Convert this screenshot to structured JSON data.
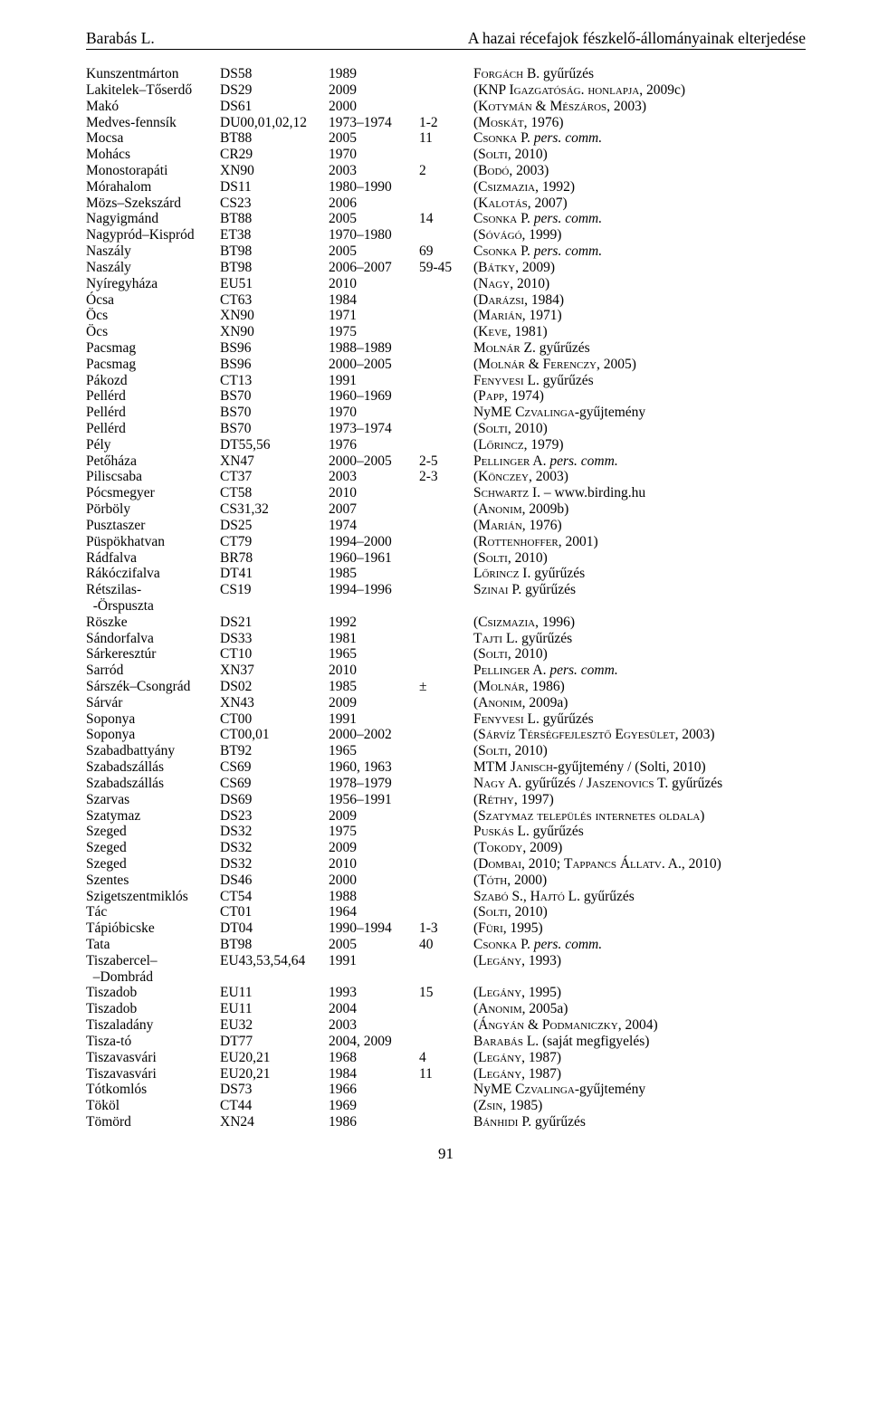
{
  "header": {
    "left": "Barabás L.",
    "right": "A hazai récefajok fészkelő-állományainak elterjedése"
  },
  "rows": [
    {
      "c1": "Kunszentmárton",
      "c2": "DS58",
      "c3": "1989",
      "c4": "",
      "c5": [
        {
          "t": "Forgách B.",
          "sc": true
        },
        {
          "t": " gyűrűzés"
        }
      ]
    },
    {
      "c1": "Lakitelek–Tőserdő",
      "c2": "DS29",
      "c3": "2009",
      "c4": "",
      "c5": [
        {
          "t": "(KNP "
        },
        {
          "t": "Igazgatóság. honlapja",
          "sc": true
        },
        {
          "t": ", 2009c)"
        }
      ]
    },
    {
      "c1": "Makó",
      "c2": "DS61",
      "c3": "2000",
      "c4": "",
      "c5": [
        {
          "t": "("
        },
        {
          "t": "Kotymán & Mészáros",
          "sc": true
        },
        {
          "t": ", 2003)"
        }
      ]
    },
    {
      "c1": "Medves-fennsík",
      "c2": "DU00,01,02,12",
      "c3": "1973–1974",
      "c4": "1-2",
      "c5": [
        {
          "t": "("
        },
        {
          "t": "Moskát",
          "sc": true
        },
        {
          "t": ", 1976)"
        }
      ]
    },
    {
      "c1": "Mocsa",
      "c2": "BT88",
      "c3": "2005",
      "c4": "11",
      "c5": [
        {
          "t": "Csonka P.",
          "sc": true
        },
        {
          "t": " pers. comm.",
          "it": true
        }
      ]
    },
    {
      "c1": "Mohács",
      "c2": "CR29",
      "c3": "1970",
      "c4": "",
      "c5": [
        {
          "t": "("
        },
        {
          "t": "Solti",
          "sc": true
        },
        {
          "t": ", 2010)"
        }
      ]
    },
    {
      "c1": "Monostorapáti",
      "c2": "XN90",
      "c3": "2003",
      "c4": "2",
      "c5": [
        {
          "t": "("
        },
        {
          "t": "Bodó",
          "sc": true
        },
        {
          "t": ", 2003)"
        }
      ]
    },
    {
      "c1": "Mórahalom",
      "c2": "DS11",
      "c3": "1980–1990",
      "c4": "",
      "c5": [
        {
          "t": "("
        },
        {
          "t": "Csizmazia",
          "sc": true
        },
        {
          "t": ", 1992)"
        }
      ]
    },
    {
      "c1": "Mözs–Szekszárd",
      "c2": "CS23",
      "c3": "2006",
      "c4": "",
      "c5": [
        {
          "t": "("
        },
        {
          "t": "Kalotás",
          "sc": true
        },
        {
          "t": ", 2007)"
        }
      ]
    },
    {
      "c1": "Nagyigmánd",
      "c2": "BT88",
      "c3": "2005",
      "c4": "14",
      "c5": [
        {
          "t": "Csonka P.",
          "sc": true
        },
        {
          "t": " pers. comm.",
          "it": true
        }
      ]
    },
    {
      "c1": "Nagypród–Kispród",
      "c2": "ET38",
      "c3": "1970–1980",
      "c4": "",
      "c5": [
        {
          "t": "("
        },
        {
          "t": "Sóvágó",
          "sc": true
        },
        {
          "t": ", 1999)"
        }
      ]
    },
    {
      "c1": "Naszály",
      "c2": "BT98",
      "c3": "2005",
      "c4": "69",
      "c5": [
        {
          "t": "Csonka P.",
          "sc": true
        },
        {
          "t": " pers. comm.",
          "it": true
        }
      ]
    },
    {
      "c1": "Naszály",
      "c2": "BT98",
      "c3": "2006–2007",
      "c4": "59-45",
      "c5": [
        {
          "t": "("
        },
        {
          "t": "Bátky",
          "sc": true
        },
        {
          "t": ", 2009)"
        }
      ]
    },
    {
      "c1": "Nyíregyháza",
      "c2": "EU51",
      "c3": "2010",
      "c4": "",
      "c5": [
        {
          "t": "("
        },
        {
          "t": "Nagy",
          "sc": true
        },
        {
          "t": ", 2010)"
        }
      ]
    },
    {
      "c1": "Ócsa",
      "c2": "CT63",
      "c3": "1984",
      "c4": "",
      "c5": [
        {
          "t": "("
        },
        {
          "t": "Darázsi",
          "sc": true
        },
        {
          "t": ", 1984)"
        }
      ]
    },
    {
      "c1": "Öcs",
      "c2": "XN90",
      "c3": "1971",
      "c4": "",
      "c5": [
        {
          "t": "("
        },
        {
          "t": "Marián",
          "sc": true
        },
        {
          "t": ", 1971)"
        }
      ]
    },
    {
      "c1": "Öcs",
      "c2": "XN90",
      "c3": "1975",
      "c4": "",
      "c5": [
        {
          "t": "("
        },
        {
          "t": "Keve",
          "sc": true
        },
        {
          "t": ", 1981)"
        }
      ]
    },
    {
      "c1": "Pacsmag",
      "c2": "BS96",
      "c3": "1988–1989",
      "c4": "",
      "c5": [
        {
          "t": "Molnár Z.",
          "sc": true
        },
        {
          "t": " gyűrűzés"
        }
      ]
    },
    {
      "c1": "Pacsmag",
      "c2": "BS96",
      "c3": "2000–2005",
      "c4": "",
      "c5": [
        {
          "t": "("
        },
        {
          "t": "Molnár & Ferenczy",
          "sc": true
        },
        {
          "t": ", 2005)"
        }
      ]
    },
    {
      "c1": "Pákozd",
      "c2": "CT13",
      "c3": "1991",
      "c4": "",
      "c5": [
        {
          "t": "Fenyvesi L.",
          "sc": true
        },
        {
          "t": " gyűrűzés"
        }
      ]
    },
    {
      "c1": "Pellérd",
      "c2": "BS70",
      "c3": "1960–1969",
      "c4": "",
      "c5": [
        {
          "t": "("
        },
        {
          "t": "Papp",
          "sc": true
        },
        {
          "t": ", 1974)"
        }
      ]
    },
    {
      "c1": "Pellérd",
      "c2": "BS70",
      "c3": "1970",
      "c4": "",
      "c5": [
        {
          "t": "NyME "
        },
        {
          "t": "Czvalinga",
          "sc": true
        },
        {
          "t": "-gyűjtemény"
        }
      ]
    },
    {
      "c1": "Pellérd",
      "c2": "BS70",
      "c3": "1973–1974",
      "c4": "",
      "c5": [
        {
          "t": "("
        },
        {
          "t": "Solti",
          "sc": true
        },
        {
          "t": ", 2010)"
        }
      ]
    },
    {
      "c1": "Pély",
      "c2": "DT55,56",
      "c3": "1976",
      "c4": "",
      "c5": [
        {
          "t": "("
        },
        {
          "t": "Lőrincz",
          "sc": true
        },
        {
          "t": ", 1979)"
        }
      ]
    },
    {
      "c1": "Petőháza",
      "c2": "XN47",
      "c3": "2000–2005",
      "c4": "2-5",
      "c5": [
        {
          "t": "Pellinger A.",
          "sc": true
        },
        {
          "t": " pers. comm.",
          "it": true
        }
      ]
    },
    {
      "c1": "Piliscsaba",
      "c2": "CT37",
      "c3": "2003",
      "c4": "2-3",
      "c5": [
        {
          "t": "("
        },
        {
          "t": "Könczey",
          "sc": true
        },
        {
          "t": ", 2003)"
        }
      ]
    },
    {
      "c1": "Pócsmegyer",
      "c2": "CT58",
      "c3": "2010",
      "c4": "",
      "c5": [
        {
          "t": "Schwartz I.",
          "sc": true
        },
        {
          "t": " – www.birding.hu"
        }
      ]
    },
    {
      "c1": "Pörböly",
      "c2": "CS31,32",
      "c3": "2007",
      "c4": "",
      "c5": [
        {
          "t": "("
        },
        {
          "t": "Anonim",
          "sc": true
        },
        {
          "t": ", 2009b)"
        }
      ]
    },
    {
      "c1": "Pusztaszer",
      "c2": "DS25",
      "c3": "1974",
      "c4": "",
      "c5": [
        {
          "t": "("
        },
        {
          "t": "Marián",
          "sc": true
        },
        {
          "t": ", 1976)"
        }
      ]
    },
    {
      "c1": "Püspökhatvan",
      "c2": "CT79",
      "c3": "1994–2000",
      "c4": "",
      "c5": [
        {
          "t": "("
        },
        {
          "t": "Rottenhoffer",
          "sc": true
        },
        {
          "t": ", 2001)"
        }
      ]
    },
    {
      "c1": "Rádfalva",
      "c2": "BR78",
      "c3": "1960–1961",
      "c4": "",
      "c5": [
        {
          "t": "("
        },
        {
          "t": "Solti",
          "sc": true
        },
        {
          "t": ", 2010)"
        }
      ]
    },
    {
      "c1": "Rákóczifalva",
      "c2": "DT41",
      "c3": "1985",
      "c4": "",
      "c5": [
        {
          "t": "Lőrincz I.",
          "sc": true
        },
        {
          "t": " gyűrűzés"
        }
      ]
    },
    {
      "c1": "Rétszilas-",
      "c2": "CS19",
      "c3": "1994–1996",
      "c4": "",
      "c5": [
        {
          "t": "Szinai P.",
          "sc": true
        },
        {
          "t": " gyűrűzés"
        }
      ]
    },
    {
      "c1": "  -Örspuszta",
      "c2": "",
      "c3": "",
      "c4": "",
      "c5": []
    },
    {
      "c1": "Röszke",
      "c2": "DS21",
      "c3": "1992",
      "c4": "",
      "c5": [
        {
          "t": "("
        },
        {
          "t": "Csizmazia",
          "sc": true
        },
        {
          "t": ", 1996)"
        }
      ]
    },
    {
      "c1": "Sándorfalva",
      "c2": "DS33",
      "c3": "1981",
      "c4": "",
      "c5": [
        {
          "t": "Tajti L.",
          "sc": true
        },
        {
          "t": " gyűrűzés"
        }
      ]
    },
    {
      "c1": "Sárkeresztúr",
      "c2": "CT10",
      "c3": "1965",
      "c4": "",
      "c5": [
        {
          "t": "("
        },
        {
          "t": "Solti",
          "sc": true
        },
        {
          "t": ", 2010)"
        }
      ]
    },
    {
      "c1": "Sarród",
      "c2": "XN37",
      "c3": "2010",
      "c4": "",
      "c5": [
        {
          "t": "Pellinger A.",
          "sc": true
        },
        {
          "t": " pers. comm.",
          "it": true
        }
      ]
    },
    {
      "c1": "Sárszék–Csongrád",
      "c2": "DS02",
      "c3": "1985",
      "c4": "±",
      "c5": [
        {
          "t": "("
        },
        {
          "t": "Molnár",
          "sc": true
        },
        {
          "t": ", 1986)"
        }
      ]
    },
    {
      "c1": "Sárvár",
      "c2": "XN43",
      "c3": "2009",
      "c4": "",
      "c5": [
        {
          "t": "("
        },
        {
          "t": "Anonim",
          "sc": true
        },
        {
          "t": ", 2009a)"
        }
      ]
    },
    {
      "c1": "Soponya",
      "c2": "CT00",
      "c3": "1991",
      "c4": "",
      "c5": [
        {
          "t": "Fenyvesi L.",
          "sc": true
        },
        {
          "t": " gyűrűzés"
        }
      ]
    },
    {
      "c1": "Soponya",
      "c2": "CT00,01",
      "c3": "2000–2002",
      "c4": "",
      "c5": [
        {
          "t": "("
        },
        {
          "t": "Sárvíz Térségfejlesztő Egyesület",
          "sc": true
        },
        {
          "t": ", 2003)"
        }
      ]
    },
    {
      "c1": "Szabadbattyány",
      "c2": "BT92",
      "c3": "1965",
      "c4": "",
      "c5": [
        {
          "t": "("
        },
        {
          "t": "Solti",
          "sc": true
        },
        {
          "t": ", 2010)"
        }
      ]
    },
    {
      "c1": "Szabadszállás",
      "c2": "CS69",
      "c3": "1960, 1963",
      "c4": "",
      "c5": [
        {
          "t": "MTM "
        },
        {
          "t": "Janisch",
          "sc": true
        },
        {
          "t": "-gyűjtemény / (Solti, 2010)"
        }
      ]
    },
    {
      "c1": "Szabadszállás",
      "c2": "CS69",
      "c3": "1978–1979",
      "c4": "",
      "c5": [
        {
          "t": "Nagy A.",
          "sc": true
        },
        {
          "t": " gyűrűzés / "
        },
        {
          "t": "Jaszenovics T.",
          "sc": true
        },
        {
          "t": " gyűrűzés"
        }
      ]
    },
    {
      "c1": "Szarvas",
      "c2": "DS69",
      "c3": "1956–1991",
      "c4": "",
      "c5": [
        {
          "t": "("
        },
        {
          "t": "Réthy",
          "sc": true
        },
        {
          "t": ", 1997)"
        }
      ]
    },
    {
      "c1": "Szatymaz",
      "c2": "DS23",
      "c3": "2009",
      "c4": "",
      "c5": [
        {
          "t": "("
        },
        {
          "t": "Szatymaz település internetes oldala",
          "sc": true
        },
        {
          "t": ")"
        }
      ]
    },
    {
      "c1": "Szeged",
      "c2": "DS32",
      "c3": "1975",
      "c4": "",
      "c5": [
        {
          "t": "Puskás L.",
          "sc": true
        },
        {
          "t": " gyűrűzés"
        }
      ]
    },
    {
      "c1": "Szeged",
      "c2": "DS32",
      "c3": "2009",
      "c4": "",
      "c5": [
        {
          "t": "("
        },
        {
          "t": "Tokody",
          "sc": true
        },
        {
          "t": ", 2009)"
        }
      ]
    },
    {
      "c1": "Szeged",
      "c2": "DS32",
      "c3": "2010",
      "c4": "",
      "c5": [
        {
          "t": "("
        },
        {
          "t": "Dombai",
          "sc": true
        },
        {
          "t": ", 2010; "
        },
        {
          "t": "Tappancs Állatv. A.",
          "sc": true
        },
        {
          "t": ", 2010)"
        }
      ]
    },
    {
      "c1": "Szentes",
      "c2": "DS46",
      "c3": "2000",
      "c4": "",
      "c5": [
        {
          "t": "("
        },
        {
          "t": "Tóth",
          "sc": true
        },
        {
          "t": ", 2000)"
        }
      ]
    },
    {
      "c1": "Szigetszentmiklós",
      "c2": "CT54",
      "c3": "1988",
      "c4": "",
      "c5": [
        {
          "t": "Szabó S., Hajtó L.",
          "sc": true
        },
        {
          "t": " gyűrűzés"
        }
      ]
    },
    {
      "c1": "Tác",
      "c2": "CT01",
      "c3": "1964",
      "c4": "",
      "c5": [
        {
          "t": "("
        },
        {
          "t": "Solti",
          "sc": true
        },
        {
          "t": ", 2010)"
        }
      ]
    },
    {
      "c1": "Tápióbicske",
      "c2": "DT04",
      "c3": "1990–1994",
      "c4": "1-3",
      "c5": [
        {
          "t": "("
        },
        {
          "t": "Füri",
          "sc": true
        },
        {
          "t": ", 1995)"
        }
      ]
    },
    {
      "c1": "Tata",
      "c2": "BT98",
      "c3": "2005",
      "c4": "40",
      "c5": [
        {
          "t": "Csonka P.",
          "sc": true
        },
        {
          "t": " pers. comm.",
          "it": true
        }
      ]
    },
    {
      "c1": "Tiszabercel–",
      "c2": "EU43,53,54,64",
      "c3": "1991",
      "c4": "",
      "c5": [
        {
          "t": "("
        },
        {
          "t": "Legány",
          "sc": true
        },
        {
          "t": ", 1993)"
        }
      ]
    },
    {
      "c1": "  –Dombrád",
      "c2": "",
      "c3": "",
      "c4": "",
      "c5": []
    },
    {
      "c1": "Tiszadob",
      "c2": "EU11",
      "c3": "1993",
      "c4": "15",
      "c5": [
        {
          "t": "("
        },
        {
          "t": "Legány",
          "sc": true
        },
        {
          "t": ", 1995)"
        }
      ]
    },
    {
      "c1": "Tiszadob",
      "c2": "EU11",
      "c3": "2004",
      "c4": "",
      "c5": [
        {
          "t": "("
        },
        {
          "t": "Anonim",
          "sc": true
        },
        {
          "t": ", 2005a)"
        }
      ]
    },
    {
      "c1": "Tiszaladány",
      "c2": "EU32",
      "c3": "2003",
      "c4": "",
      "c5": [
        {
          "t": "("
        },
        {
          "t": "Ángyán & Podmaniczky",
          "sc": true
        },
        {
          "t": ", 2004)"
        }
      ]
    },
    {
      "c1": "Tisza-tó",
      "c2": "DT77",
      "c3": "2004, 2009",
      "c4": "",
      "c5": [
        {
          "t": "Barabás L.",
          "sc": true
        },
        {
          "t": " (saját megfigyelés)"
        }
      ]
    },
    {
      "c1": "Tiszavasvári",
      "c2": "EU20,21",
      "c3": "1968",
      "c4": "4",
      "c5": [
        {
          "t": "("
        },
        {
          "t": "Legány",
          "sc": true
        },
        {
          "t": ", 1987)"
        }
      ]
    },
    {
      "c1": "Tiszavasvári",
      "c2": "EU20,21",
      "c3": "1984",
      "c4": "11",
      "c5": [
        {
          "t": "("
        },
        {
          "t": "Legány",
          "sc": true
        },
        {
          "t": ", 1987)"
        }
      ]
    },
    {
      "c1": "Tótkomlós",
      "c2": "DS73",
      "c3": "1966",
      "c4": "",
      "c5": [
        {
          "t": "NyME "
        },
        {
          "t": "Czvalinga",
          "sc": true
        },
        {
          "t": "-gyűjtemény"
        }
      ]
    },
    {
      "c1": "Tököl",
      "c2": "CT44",
      "c3": "1969",
      "c4": "",
      "c5": [
        {
          "t": "("
        },
        {
          "t": "Zsin",
          "sc": true
        },
        {
          "t": ", 1985)"
        }
      ]
    },
    {
      "c1": "Tömörd",
      "c2": "XN24",
      "c3": "1986",
      "c4": "",
      "c5": [
        {
          "t": "Bánhidi P.",
          "sc": true
        },
        {
          "t": " gyűrűzés"
        }
      ]
    }
  ],
  "pagenum": "91"
}
